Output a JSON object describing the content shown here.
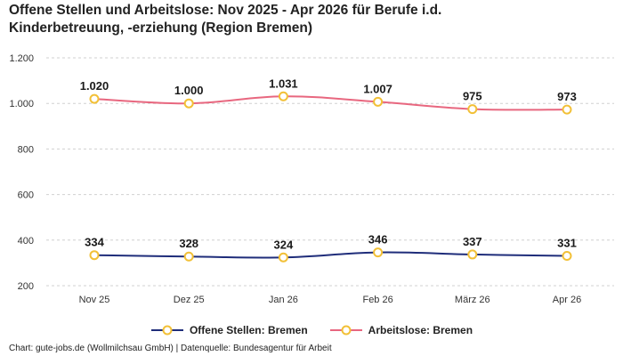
{
  "chart_data": {
    "type": "line",
    "title_line1": "Offene Stellen und Arbeitslose: Nov 2025 - Apr 2026 für Berufe i.d.",
    "title_line2": "Kinderbetreuung, -erziehung (Region Bremen)",
    "categories": [
      "Nov 25",
      "Dez 25",
      "Jan 26",
      "Feb 26",
      "März 26",
      "Apr 26"
    ],
    "y_ticks": [
      "200",
      "400",
      "600",
      "800",
      "1.000",
      "1.200"
    ],
    "ylim": [
      200,
      1200
    ],
    "grid": true,
    "legend_position": "bottom",
    "series": [
      {
        "name": "Offene Stellen: Bremen",
        "values": [
          334,
          328,
          324,
          346,
          337,
          331
        ],
        "labels": [
          "334",
          "328",
          "324",
          "346",
          "337",
          "331"
        ],
        "color": "#1f2d7a"
      },
      {
        "name": "Arbeitslose: Bremen",
        "values": [
          1020,
          1000,
          1031,
          1007,
          975,
          973
        ],
        "labels": [
          "1.020",
          "1.000",
          "1.031",
          "1.007",
          "975",
          "973"
        ],
        "color": "#e8677f"
      }
    ],
    "marker_color": "#f2c037"
  },
  "footer": {
    "source": "Chart: gute-jobs.de (Wollmilchsau GmbH) | Datenquelle: Bundesagentur für Arbeit"
  }
}
